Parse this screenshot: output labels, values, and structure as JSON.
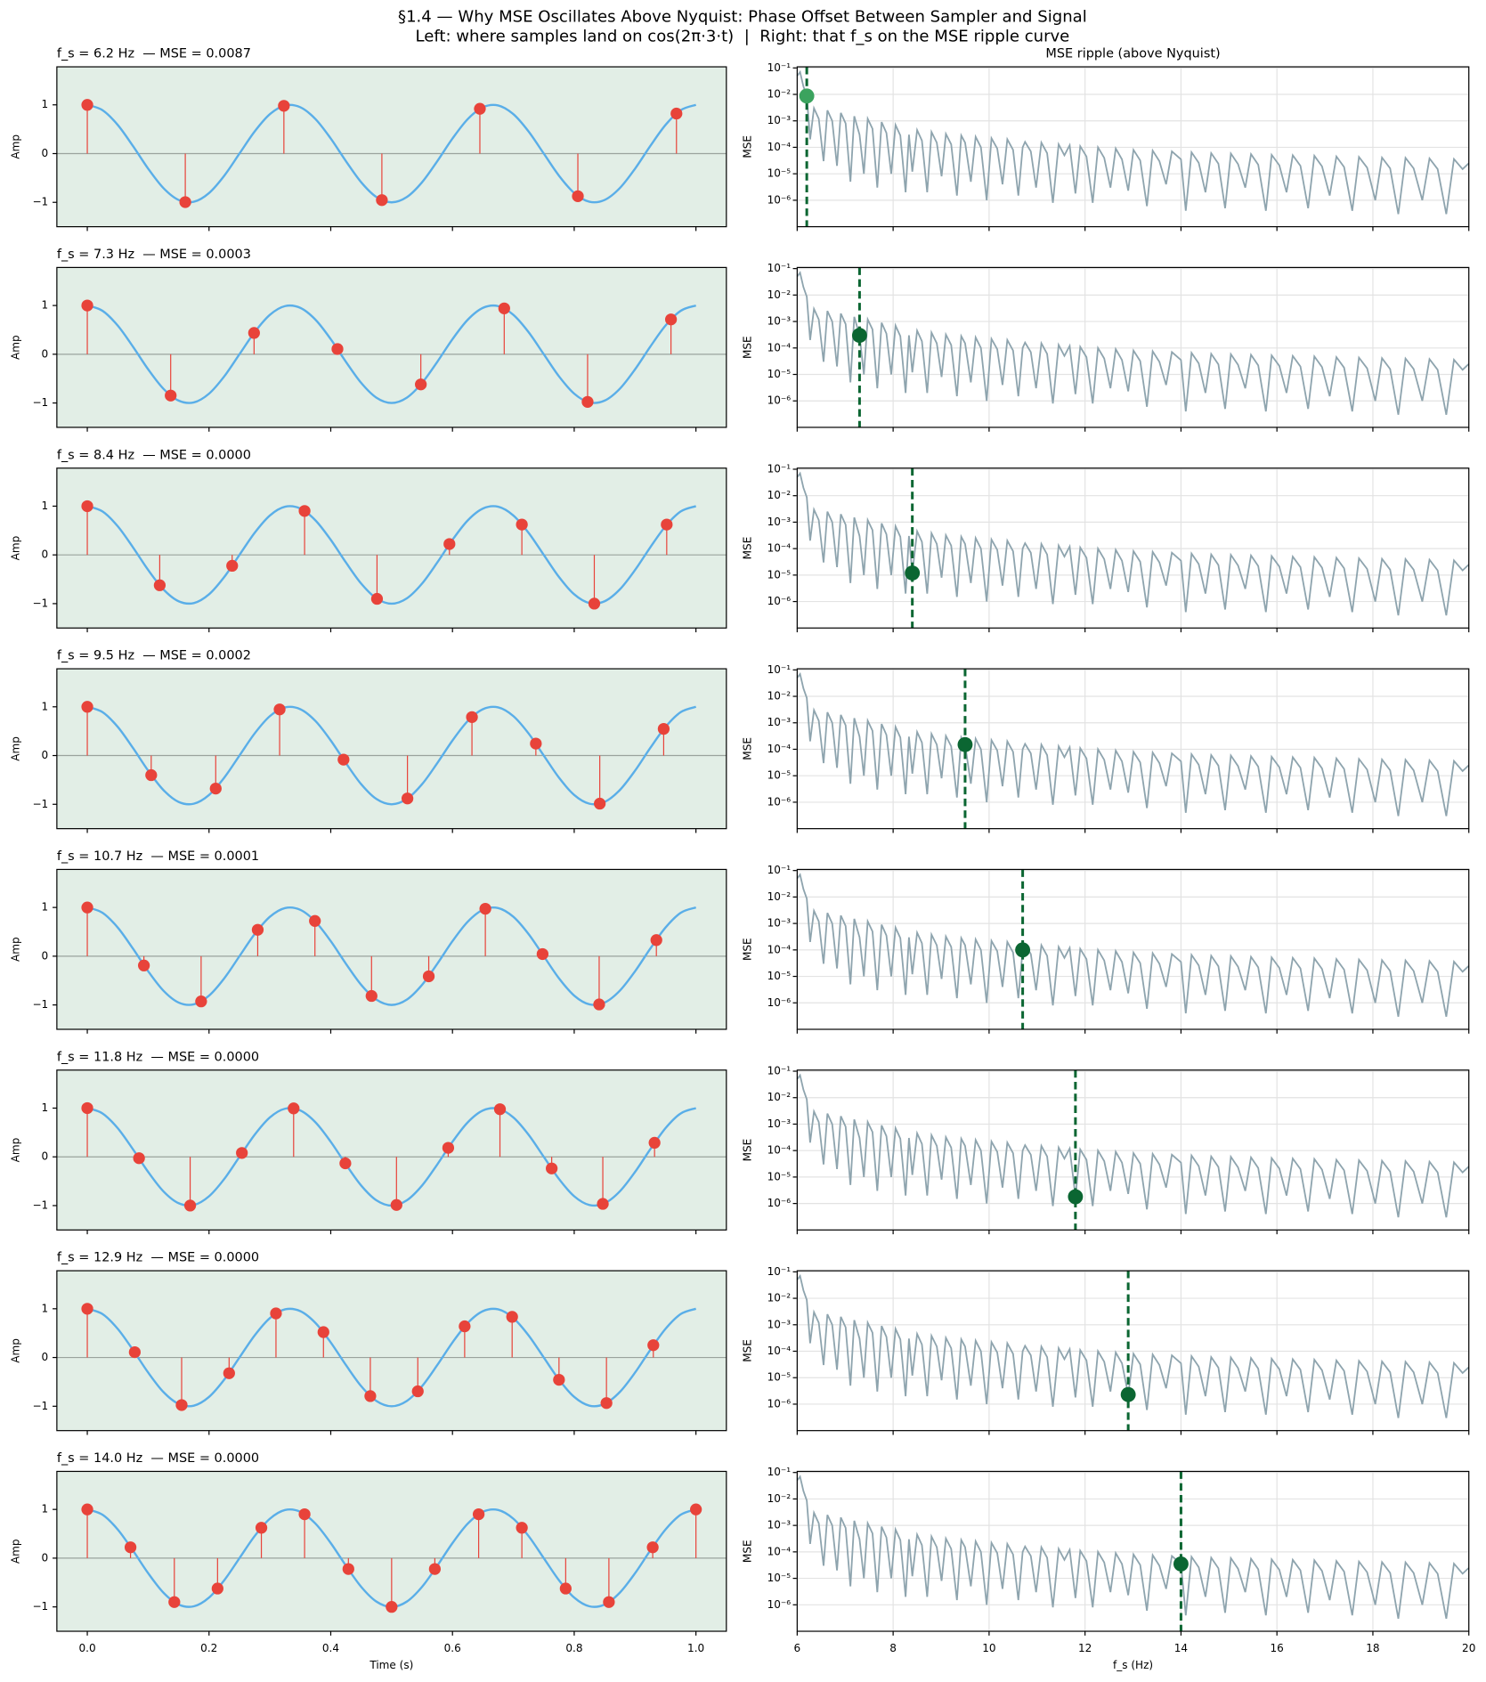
{
  "figure": {
    "title": "§1.4 — Why MSE Oscillates Above Nyquist: Phase Offset Between Sampler and Signal",
    "subtitle": "Left: where samples land on cos(2π·3·t)  |  Right: that f_s on the MSE ripple curve"
  },
  "chart_data": [
    {
      "type": "stem",
      "ylabel": "Amp",
      "xlabel": "Time (s)",
      "xlim": [
        -0.05,
        1.05
      ],
      "ylim": [
        -1.5,
        1.78
      ],
      "xticks": [
        {
          "value": 0,
          "label": "0.0"
        },
        0.2,
        0.4,
        0.6,
        0.8,
        {
          "value": 1,
          "label": "1.0"
        }
      ],
      "yticks": [
        {
          "value": -1,
          "label": "−1"
        },
        0,
        1
      ],
      "background": "#e2eee6",
      "sample_color": "#e8433a",
      "reference": {
        "color": "#5aaee8",
        "x": [
          0,
          0.025,
          0.05,
          0.075,
          0.1,
          0.125,
          0.15,
          0.175,
          0.2,
          0.225,
          0.25,
          0.275,
          0.3,
          0.325,
          0.35,
          0.375,
          0.4,
          0.425,
          0.45,
          0.475,
          0.5,
          0.525,
          0.55,
          0.575,
          0.6,
          0.625,
          0.65,
          0.675,
          0.7,
          0.725,
          0.75,
          0.775,
          0.8,
          0.825,
          0.85,
          0.875,
          0.9,
          0.925,
          0.95,
          0.975,
          1
        ],
        "values": [
          1,
          0.891,
          0.588,
          0.156,
          -0.309,
          -0.707,
          -0.951,
          -0.988,
          -0.809,
          -0.454,
          0,
          0.454,
          0.809,
          0.988,
          0.951,
          0.707,
          0.309,
          -0.156,
          -0.588,
          -0.891,
          -1,
          -0.891,
          -0.588,
          -0.156,
          0.309,
          0.707,
          0.951,
          0.988,
          0.809,
          0.454,
          0,
          -0.454,
          -0.809,
          -0.988,
          -0.951,
          -0.707,
          -0.309,
          0.156,
          0.588,
          0.891,
          1
        ]
      },
      "panels": [
        {
          "title": "f_s = 6.2 Hz  — MSE = 0.0087",
          "x": [
            0,
            0.161,
            0.323,
            0.484,
            0.645,
            0.806,
            0.968
          ],
          "values": [
            1,
            -0.995,
            0.98,
            -0.954,
            0.919,
            -0.874,
            0.821
          ]
        },
        {
          "title": "f_s = 7.3 Hz  — MSE = 0.0003",
          "x": [
            0,
            0.137,
            0.274,
            0.411,
            0.548,
            0.685,
            0.822,
            0.959
          ],
          "values": [
            1,
            -0.847,
            0.437,
            0.107,
            -0.619,
            0.941,
            -0.977,
            0.715
          ]
        },
        {
          "title": "f_s = 8.4 Hz  — MSE = 0.0000",
          "x": [
            0,
            0.119,
            0.238,
            0.357,
            0.476,
            0.595,
            0.714,
            0.833,
            0.952
          ],
          "values": [
            1,
            -0.623,
            -0.223,
            0.901,
            -0.901,
            0.223,
            0.623,
            -1,
            0.623
          ]
        },
        {
          "title": "f_s = 9.5 Hz  — MSE = 0.0002",
          "x": [
            0,
            0.105,
            0.211,
            0.316,
            0.421,
            0.526,
            0.632,
            0.737,
            0.842,
            0.947
          ],
          "values": [
            1,
            -0.402,
            -0.677,
            0.946,
            -0.083,
            -0.88,
            0.789,
            0.245,
            -0.986,
            0.547
          ]
        },
        {
          "title": "f_s = 10.7 Hz  — MSE = 0.0001",
          "x": [
            0,
            0.093,
            0.187,
            0.28,
            0.374,
            0.467,
            0.561,
            0.654,
            0.748,
            0.841,
            0.935
          ],
          "values": [
            1,
            -0.19,
            -0.928,
            0.542,
            0.723,
            -0.816,
            -0.413,
            0.973,
            0.044,
            -0.989,
            0.331
          ]
        },
        {
          "title": "f_s = 11.8 Hz  — MSE = 0.0000",
          "x": [
            0,
            0.085,
            0.169,
            0.254,
            0.339,
            0.424,
            0.508,
            0.593,
            0.678,
            0.763,
            0.847,
            0.932
          ],
          "values": [
            1,
            -0.027,
            -0.999,
            0.08,
            0.994,
            -0.133,
            -0.987,
            0.185,
            0.977,
            -0.237,
            -0.965,
            0.289
          ]
        },
        {
          "title": "f_s = 12.9 Hz  — MSE = 0.0000",
          "x": [
            0,
            0.078,
            0.155,
            0.233,
            0.31,
            0.388,
            0.465,
            0.543,
            0.62,
            0.698,
            0.775,
            0.853,
            0.93
          ],
          "values": [
            1,
            0.109,
            -0.976,
            -0.323,
            0.905,
            0.521,
            -0.792,
            -0.694,
            0.64,
            0.834,
            -0.457,
            -0.934,
            0.253
          ]
        },
        {
          "title": "f_s = 14.0 Hz  — MSE = 0.0000",
          "x": [
            0,
            0.071,
            0.143,
            0.214,
            0.286,
            0.357,
            0.429,
            0.5,
            0.571,
            0.643,
            0.714,
            0.786,
            0.857,
            0.929,
            1
          ],
          "values": [
            1,
            0.223,
            -0.901,
            -0.623,
            0.623,
            0.901,
            -0.223,
            -1,
            -0.223,
            0.901,
            0.623,
            -0.623,
            -0.901,
            0.223,
            1
          ]
        }
      ]
    },
    {
      "type": "line",
      "title": "MSE ripple (above Nyquist)",
      "ylabel": "MSE",
      "xlabel": "f_s (Hz)",
      "yscale": "log",
      "grid": true,
      "color": "#8ea4ae",
      "xlim": [
        6,
        20
      ],
      "ylim": [
        1e-07,
        0.11
      ],
      "xticks": [
        6,
        8,
        10,
        12,
        14,
        16,
        18,
        20
      ],
      "yticks": [
        {
          "value": 1e-06,
          "label": "10⁻⁶"
        },
        {
          "value": 1e-05,
          "label": "10⁻⁵"
        },
        {
          "value": 0.0001,
          "label": "10⁻⁴"
        },
        {
          "value": 0.001,
          "label": "10⁻³"
        },
        {
          "value": 0.01,
          "label": "10⁻²"
        },
        {
          "value": 0.1,
          "label": "10⁻¹"
        }
      ],
      "x": [
        6.0,
        6.06,
        6.13,
        6.2,
        6.27,
        6.35,
        6.45,
        6.55,
        6.63,
        6.73,
        6.83,
        6.91,
        7.01,
        7.11,
        7.19,
        7.3,
        7.39,
        7.47,
        7.57,
        7.67,
        7.76,
        7.86,
        7.96,
        8.05,
        8.15,
        8.26,
        8.33,
        8.4,
        8.5,
        8.6,
        8.71,
        8.8,
        8.91,
        9.01,
        9.1,
        9.21,
        9.33,
        9.42,
        9.5,
        9.62,
        9.72,
        9.83,
        9.95,
        10.05,
        10.17,
        10.28,
        10.38,
        10.5,
        10.61,
        10.7,
        10.75,
        10.87,
        10.98,
        11.09,
        11.21,
        11.33,
        11.45,
        11.57,
        11.68,
        11.8,
        11.9,
        12.03,
        12.16,
        12.27,
        12.4,
        12.53,
        12.64,
        12.77,
        12.9,
        13.01,
        13.15,
        13.29,
        13.41,
        13.55,
        13.69,
        13.81,
        14.0,
        14.1,
        14.22,
        14.37,
        14.51,
        14.63,
        14.78,
        14.92,
        15.04,
        15.19,
        15.34,
        15.46,
        15.61,
        15.77,
        15.89,
        16.05,
        16.2,
        16.33,
        16.49,
        16.65,
        16.78,
        16.94,
        17.1,
        17.24,
        17.4,
        17.57,
        17.71,
        17.88,
        18.05,
        18.19,
        18.36,
        18.53,
        18.68,
        18.85,
        19.03,
        19.18,
        19.35,
        19.53,
        19.69,
        19.87,
        20.0
      ],
      "values": [
        0.05,
        0.07,
        0.02,
        0.0087,
        0.0002,
        0.003,
        0.0012,
        3e-05,
        0.0025,
        0.001,
        2e-05,
        0.002,
        0.0008,
        5e-06,
        0.0015,
        0.0003,
        1e-05,
        0.0012,
        0.0005,
        3e-06,
        0.0009,
        0.00035,
        1e-05,
        0.0007,
        0.00028,
        2e-06,
        0.0003,
        1.2e-05,
        0.00045,
        0.00018,
        2e-06,
        0.00038,
        0.00015,
        8e-06,
        0.00032,
        0.00013,
        1.5e-06,
        0.00028,
        0.00015,
        5e-06,
        0.00025,
        0.0001,
        1e-06,
        0.00022,
        9e-05,
        4e-06,
        0.0002,
        8e-05,
        1.5e-06,
        0.0001,
        0.00016,
        7e-05,
        3e-06,
        0.00015,
        6e-05,
        8e-07,
        0.00013,
        5e-05,
        0.00012,
        1.8e-06,
        0.00011,
        4.5e-05,
        8e-07,
        0.0001,
        4e-05,
        3e-06,
        9e-05,
        3.5e-05,
        2.3e-06,
        8e-05,
        3.2e-05,
        6e-07,
        7.5e-05,
        3e-05,
        4e-06,
        7e-05,
        3.5e-05,
        4e-07,
        6.5e-05,
        2.6e-05,
        2e-06,
        6e-05,
        2.4e-05,
        5e-07,
        5.8e-05,
        2.3e-05,
        3e-06,
        5.5e-05,
        2.2e-05,
        4e-07,
        5.2e-05,
        2.1e-05,
        2e-06,
        5e-05,
        2e-05,
        5e-07,
        4.8e-05,
        1.9e-05,
        1.5e-06,
        4.5e-05,
        1.8e-05,
        4e-07,
        4.3e-05,
        1.7e-05,
        1e-06,
        4.1e-05,
        1.6e-05,
        3e-07,
        4e-05,
        1.6e-05,
        1e-06,
        3.8e-05,
        1.5e-05,
        3e-07,
        3.6e-05,
        1.5e-05,
        2.5e-05
      ],
      "markers": {
        "x": [
          6.2,
          7.3,
          8.4,
          9.5,
          10.7,
          11.8,
          12.9,
          14.0
        ],
        "values": [
          0.0087,
          0.0003,
          1.2e-05,
          0.00015,
          0.0001,
          1.8e-06,
          2.3e-06,
          3.5e-05
        ],
        "colors": [
          "#3ba35e",
          "#0b6632",
          "#0b6632",
          "#0b6632",
          "#0b6632",
          "#0b6632",
          "#0b6632",
          "#0b6632"
        ],
        "line_color": "#0b6632"
      }
    }
  ]
}
